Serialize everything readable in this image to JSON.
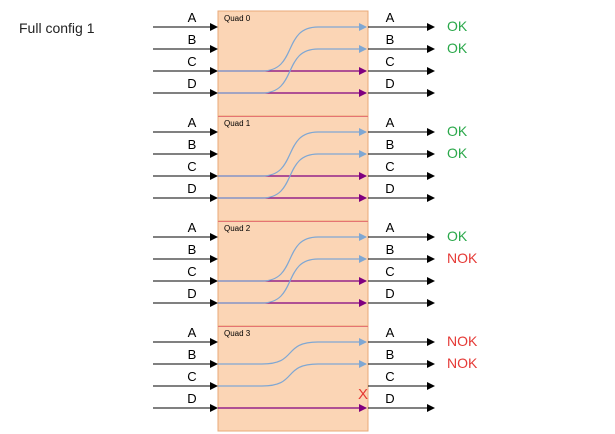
{
  "title": "Full config 1",
  "colors": {
    "quad_fill": "#fbd5b5",
    "quad_stroke": "#e9a978",
    "quad_divider": "#e57373",
    "wire": "#000000",
    "straight_route": "#800080",
    "cross_route": "#7fa7d3",
    "ok": "#2aa84a",
    "nok": "#e53935",
    "fail_mark": "#e53935"
  },
  "quads": [
    {
      "label": "Quad 0",
      "inputs": [
        "A",
        "B",
        "C",
        "D"
      ],
      "outputs": [
        "A",
        "B",
        "C",
        "D"
      ],
      "routes": [
        {
          "from": "C",
          "to": "C",
          "kind": "straight"
        },
        {
          "from": "D",
          "to": "D",
          "kind": "straight"
        },
        {
          "from": "C",
          "to": "A",
          "kind": "cross"
        },
        {
          "from": "D",
          "to": "B",
          "kind": "cross"
        }
      ],
      "status": [
        {
          "port": "A",
          "text": "OK",
          "ok": true
        },
        {
          "port": "B",
          "text": "OK",
          "ok": true
        }
      ],
      "fail_marks": []
    },
    {
      "label": "Quad 1",
      "inputs": [
        "A",
        "B",
        "C",
        "D"
      ],
      "outputs": [
        "A",
        "B",
        "C",
        "D"
      ],
      "routes": [
        {
          "from": "C",
          "to": "C",
          "kind": "straight"
        },
        {
          "from": "D",
          "to": "D",
          "kind": "straight"
        },
        {
          "from": "C",
          "to": "A",
          "kind": "cross"
        },
        {
          "from": "D",
          "to": "B",
          "kind": "cross"
        }
      ],
      "status": [
        {
          "port": "A",
          "text": "OK",
          "ok": true
        },
        {
          "port": "B",
          "text": "OK",
          "ok": true
        }
      ],
      "fail_marks": []
    },
    {
      "label": "Quad 2",
      "inputs": [
        "A",
        "B",
        "C",
        "D"
      ],
      "outputs": [
        "A",
        "B",
        "C",
        "D"
      ],
      "routes": [
        {
          "from": "C",
          "to": "C",
          "kind": "straight"
        },
        {
          "from": "D",
          "to": "D",
          "kind": "straight"
        },
        {
          "from": "C",
          "to": "A",
          "kind": "cross"
        },
        {
          "from": "D",
          "to": "B",
          "kind": "cross"
        }
      ],
      "status": [
        {
          "port": "A",
          "text": "OK",
          "ok": true
        },
        {
          "port": "B",
          "text": "NOK",
          "ok": false
        }
      ],
      "fail_marks": []
    },
    {
      "label": "Quad 3",
      "inputs": [
        "A",
        "B",
        "C",
        "D"
      ],
      "outputs": [
        "A",
        "B",
        "C",
        "D"
      ],
      "routes": [
        {
          "from": "D",
          "to": "D",
          "kind": "straight"
        },
        {
          "from": "B",
          "to": "A",
          "kind": "cross"
        },
        {
          "from": "C",
          "to": "B",
          "kind": "cross"
        }
      ],
      "status": [
        {
          "port": "A",
          "text": "NOK",
          "ok": false
        },
        {
          "port": "B",
          "text": "NOK",
          "ok": false
        }
      ],
      "fail_marks": [
        {
          "port": "C",
          "text": "X"
        }
      ]
    }
  ]
}
